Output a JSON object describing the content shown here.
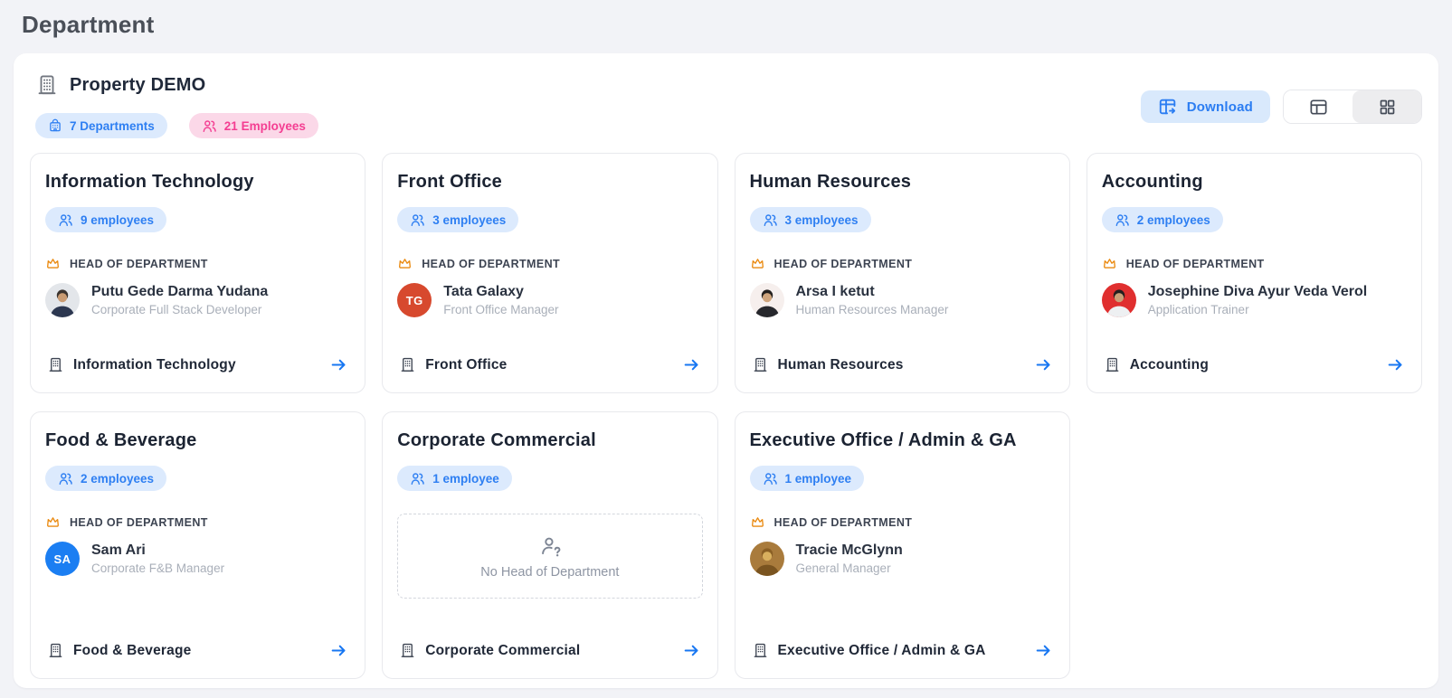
{
  "page_title": "Department",
  "property": {
    "name": "Property DEMO",
    "departments_badge": "7 Departments",
    "employees_badge": "21 Employees"
  },
  "toolbar": {
    "download_label": "Download",
    "view_modes": [
      "table",
      "grid"
    ],
    "active_view": "grid"
  },
  "labels": {
    "head_of_department": "HEAD OF DEPARTMENT",
    "no_head": "No Head of Department"
  },
  "colors": {
    "accent_blue": "#2e7ff2",
    "badge_blue_bg": "#dceafd",
    "badge_pink_text": "#f43e92",
    "badge_pink_bg": "#fbd8e8",
    "crown_orange": "#ea8a10",
    "arrow_blue": "#1877f2"
  },
  "departments": [
    {
      "name": "Information Technology",
      "employees": "9 employees",
      "footer": "Information Technology",
      "head": {
        "name": "Putu Gede Darma Yudana",
        "title": "Corporate Full Stack Developer",
        "avatar": {
          "kind": "photo",
          "bg": "#e3e6ea",
          "hair": "#3a332e",
          "skin": "#c99b72",
          "suit": "#2c3750"
        }
      }
    },
    {
      "name": "Front Office",
      "employees": "3 employees",
      "footer": "Front Office",
      "head": {
        "name": "Tata Galaxy",
        "title": "Front Office Manager",
        "avatar": {
          "kind": "initials",
          "text": "TG",
          "bg": "#d7492e"
        }
      }
    },
    {
      "name": "Human Resources",
      "employees": "3 employees",
      "footer": "Human Resources",
      "head": {
        "name": "Arsa I ketut",
        "title": "Human Resources Manager",
        "avatar": {
          "kind": "photo",
          "bg": "#f6efed",
          "hair": "#23201e",
          "skin": "#cfa57d",
          "suit": "#26272c"
        }
      }
    },
    {
      "name": "Accounting",
      "employees": "2 employees",
      "footer": "Accounting",
      "head": {
        "name": "Josephine Diva Ayur Veda Verol",
        "title": "Application Trainer",
        "avatar": {
          "kind": "photo",
          "bg": "#e02f2f",
          "hair": "#241f1e",
          "skin": "#caa078",
          "suit": "#eef0f2"
        }
      }
    },
    {
      "name": "Food & Beverage",
      "employees": "2 employees",
      "footer": "Food & Beverage",
      "head": {
        "name": "Sam Ari",
        "title": "Corporate F&B Manager",
        "avatar": {
          "kind": "initials",
          "text": "SA",
          "bg": "#1b7ef2"
        }
      }
    },
    {
      "name": "Corporate Commercial",
      "employees": "1 employee",
      "footer": "Corporate Commercial",
      "head": null
    },
    {
      "name": "Executive Office / Admin & GA",
      "employees": "1 employee",
      "footer": "Executive Office / Admin & GA",
      "head": {
        "name": "Tracie McGlynn",
        "title": "General Manager",
        "avatar": {
          "kind": "photo",
          "bg": "#a97b3c",
          "hair": "#8a5f24",
          "skin": "#d9b05e",
          "suit": "#7a5420"
        }
      }
    }
  ]
}
